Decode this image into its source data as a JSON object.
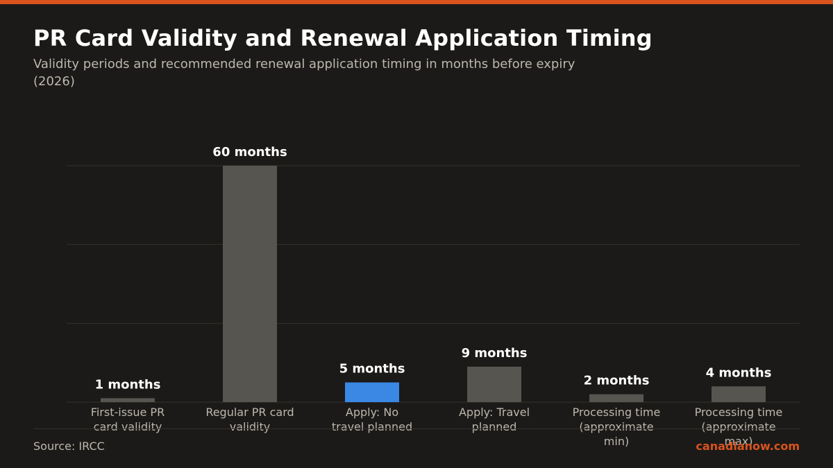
{
  "header": {
    "title": "PR Card Validity and Renewal Application Timing",
    "subtitle": "Validity periods and recommended renewal application timing in months before expiry (2026)"
  },
  "footer": {
    "source": "Source: IRCC",
    "brand": "canadianow.com"
  },
  "colors": {
    "accent": "#d9531e",
    "bar_default": "#57554f",
    "bar_highlight": "#3a88e4",
    "gridline": "#34322e"
  },
  "chart_data": {
    "type": "bar",
    "categories": [
      "First-issue PR card validity",
      "Regular PR card validity",
      "Apply: No travel planned",
      "Apply: Travel planned",
      "Processing time (approximate min)",
      "Processing time (approximate max)"
    ],
    "values": [
      1,
      60,
      5,
      9,
      2,
      4
    ],
    "value_labels": [
      "1 months",
      "60 months",
      "5 months",
      "9 months",
      "2 months",
      "4 months"
    ],
    "highlight_index": 2,
    "ylim": [
      0,
      60
    ],
    "yticks": [
      0,
      20,
      40,
      60
    ],
    "grid": true,
    "xlabel": "",
    "ylabel": ""
  }
}
